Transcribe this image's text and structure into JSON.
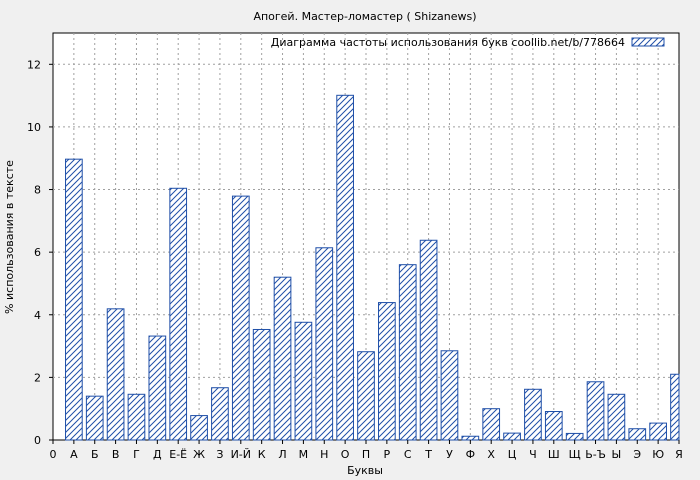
{
  "chart_data": {
    "type": "bar",
    "title": "Апогей. Мастер-ломастер ( Shizanews)",
    "xlabel": "Буквы",
    "ylabel": "% использования в тексте",
    "legend": "Диаграмма частоты использования букв coollib.net/b/778664",
    "legend_position": "top-right",
    "grid": true,
    "bar_color": "#1f4fa8",
    "ylim": [
      0,
      13
    ],
    "yticks": [
      0,
      2,
      4,
      6,
      8,
      10,
      12
    ],
    "x_tick_labels": [
      "0",
      "А",
      "Б",
      "В",
      "Г",
      "Д",
      "Е-Ё",
      "Ж",
      "З",
      "И-Й",
      "К",
      "Л",
      "М",
      "Н",
      "О",
      "П",
      "Р",
      "С",
      "Т",
      "У",
      "Ф",
      "Х",
      "Ц",
      "Ч",
      "Ш",
      "Щ",
      "Ь-Ъ",
      "Ы",
      "Э",
      "Ю",
      "Я"
    ],
    "categories": [
      "А",
      "Б",
      "В",
      "Г",
      "Д",
      "Е-Ё",
      "Ж",
      "З",
      "И-Й",
      "К",
      "Л",
      "М",
      "Н",
      "О",
      "П",
      "Р",
      "С",
      "Т",
      "У",
      "Ф",
      "Х",
      "Ц",
      "Ч",
      "Ш",
      "Щ",
      "Ь-Ъ",
      "Ы",
      "Э",
      "Ю",
      "Я"
    ],
    "values": [
      8.97,
      1.4,
      4.19,
      1.46,
      3.32,
      8.04,
      0.78,
      1.67,
      7.79,
      3.53,
      5.2,
      3.76,
      6.14,
      11.01,
      2.82,
      4.39,
      5.6,
      6.38,
      2.85,
      0.12,
      1.0,
      0.22,
      1.62,
      0.91,
      0.21,
      1.86,
      1.46,
      0.36,
      0.54,
      2.1
    ]
  }
}
